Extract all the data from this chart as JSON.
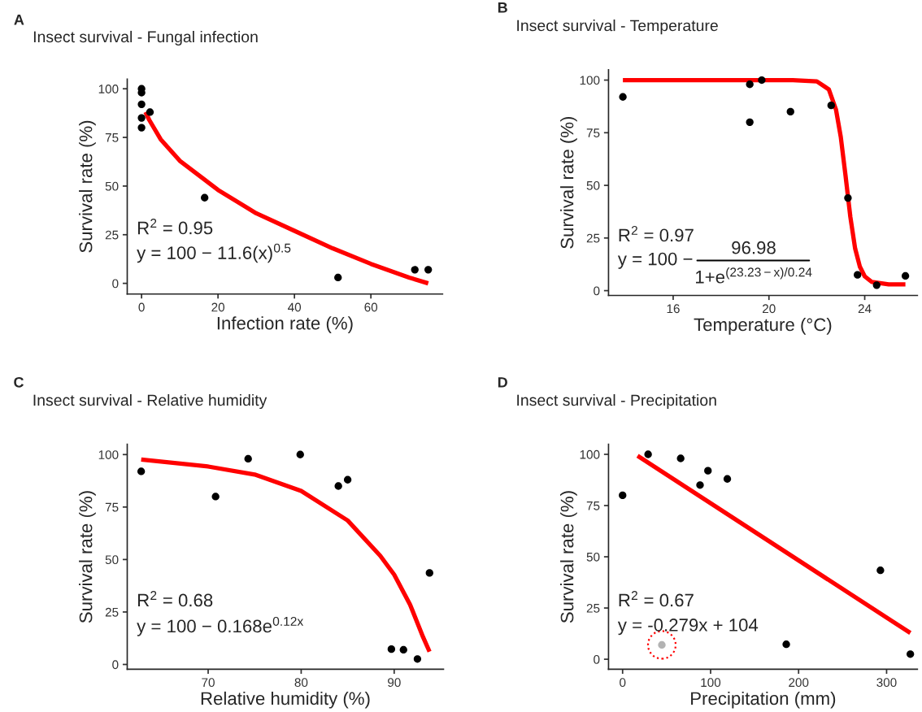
{
  "chart_data": [
    {
      "type": "scatter",
      "title": "Insect survival - Fungal infection",
      "xlabel": "Infection rate (%)",
      "ylabel": "Survival rate (%)",
      "annotations": [
        "A",
        "R$^{2}$ = 0.95",
        "y = 100 − 11.6(x)$^{0.5}$"
      ],
      "xlim": [
        -3.75,
        78.75
      ],
      "ylim": [
        -5.5,
        105
      ],
      "xticks": [
        0,
        20,
        40,
        60
      ],
      "yticks": [
        0,
        25,
        50,
        75,
        100
      ],
      "series": [
        {
          "color": "#000000",
          "x": [
            0,
            0,
            0,
            0,
            0,
            2.2,
            16.5,
            51.4,
            71.5,
            75
          ],
          "values": [
            100,
            98,
            92,
            85,
            80,
            88,
            44,
            3,
            7,
            7
          ]
        },
        {
          "type": "line",
          "color": "#ff0000",
          "x": [
            1,
            2,
            5,
            10,
            20,
            30,
            40,
            50,
            60,
            70,
            75
          ],
          "values": [
            88,
            84,
            74,
            63,
            48,
            36,
            27,
            18,
            10,
            3,
            0
          ]
        }
      ]
    },
    {
      "type": "scatter",
      "title": "Insect survival - Temperature",
      "xlabel": "Temperature (°C)",
      "ylabel": "Survival rate (%)",
      "annotations": [
        "B",
        "R$^{2}$ = 0.97",
        "y = 100 −",
        "96.98",
        "1+e$^{(23.23−x)/0.24}$"
      ],
      "xlim": [
        13.3,
        26.2
      ],
      "ylim": [
        -2.3,
        104.9
      ],
      "xticks": [
        16,
        20,
        24
      ],
      "yticks": [
        0,
        25,
        50,
        75,
        100
      ],
      "series": [
        {
          "color": "#000000",
          "x": [
            13.9,
            19.2,
            19.7,
            19.2,
            20.9,
            22.6,
            23.3,
            23.7,
            24.5,
            25.7
          ],
          "values": [
            92,
            98,
            100,
            80,
            85,
            88,
            44,
            7.5,
            2.6,
            7
          ]
        },
        {
          "type": "line",
          "color": "#ff0000",
          "x": [
            13.9,
            21,
            22,
            22.5,
            22.8,
            23.0,
            23.2,
            23.4,
            23.6,
            23.8,
            24.0,
            24.3,
            25,
            25.7
          ],
          "values": [
            100,
            100,
            99.4,
            95.6,
            86,
            73,
            54.5,
            35,
            20,
            11.3,
            6.8,
            4.1,
            3,
            3
          ]
        }
      ]
    },
    {
      "type": "scatter",
      "title": "Insect survival - Relative humidity",
      "xlabel": "Relative humidity (%)",
      "ylabel": "Survival rate (%)",
      "annotations": [
        "C",
        "R$^{2}$ = 0.68",
        "y = 100 − 0.168e$^{0.12x}$"
      ],
      "xlim": [
        61.3,
        95.3
      ],
      "ylim": [
        -2.3,
        104.9
      ],
      "xticks": [
        70,
        80,
        90
      ],
      "yticks": [
        0,
        25,
        50,
        75,
        100
      ],
      "series": [
        {
          "color": "#000000",
          "x": [
            62.8,
            70.8,
            74.3,
            79.9,
            84.0,
            85.0,
            89.7,
            91.0,
            92.5,
            93.8
          ],
          "values": [
            92,
            80,
            98,
            100,
            85,
            88,
            7.3,
            7,
            2.6,
            43.6
          ]
        },
        {
          "type": "line",
          "color": "#ff0000",
          "x": [
            62.8,
            70,
            75,
            80,
            85,
            88.5,
            90,
            91.7,
            93.1,
            93.8
          ],
          "values": [
            97.6,
            94.3,
            90.5,
            82.7,
            68.6,
            51.8,
            42.8,
            28.6,
            13.1,
            6.1
          ]
        }
      ]
    },
    {
      "type": "scatter",
      "title": "Insect survival - Precipitation",
      "xlabel": "Precipitation (mm)",
      "ylabel": "Survival rate (%)",
      "annotations": [
        "D",
        "R$^{2}$ = 0.67",
        "y = -0.279x + 104"
      ],
      "xlim": [
        -16,
        335
      ],
      "ylim": [
        -4.9,
        104.9
      ],
      "xticks": [
        0,
        100,
        200,
        300
      ],
      "yticks": [
        0,
        25,
        50,
        75,
        100
      ],
      "series": [
        {
          "color": "#000000",
          "x": [
            0,
            29,
            66,
            88,
            97,
            119,
            186,
            293,
            327
          ],
          "values": [
            80,
            100,
            98,
            85,
            92,
            88,
            7.3,
            43.4,
            2.5
          ]
        },
        {
          "color": "#b3b3b3",
          "x": [
            44.6
          ],
          "values": [
            7
          ]
        },
        {
          "type": "line",
          "color": "#ff0000",
          "x": [
            17,
            327
          ],
          "values": [
            99.3,
            12.8
          ]
        }
      ]
    }
  ]
}
